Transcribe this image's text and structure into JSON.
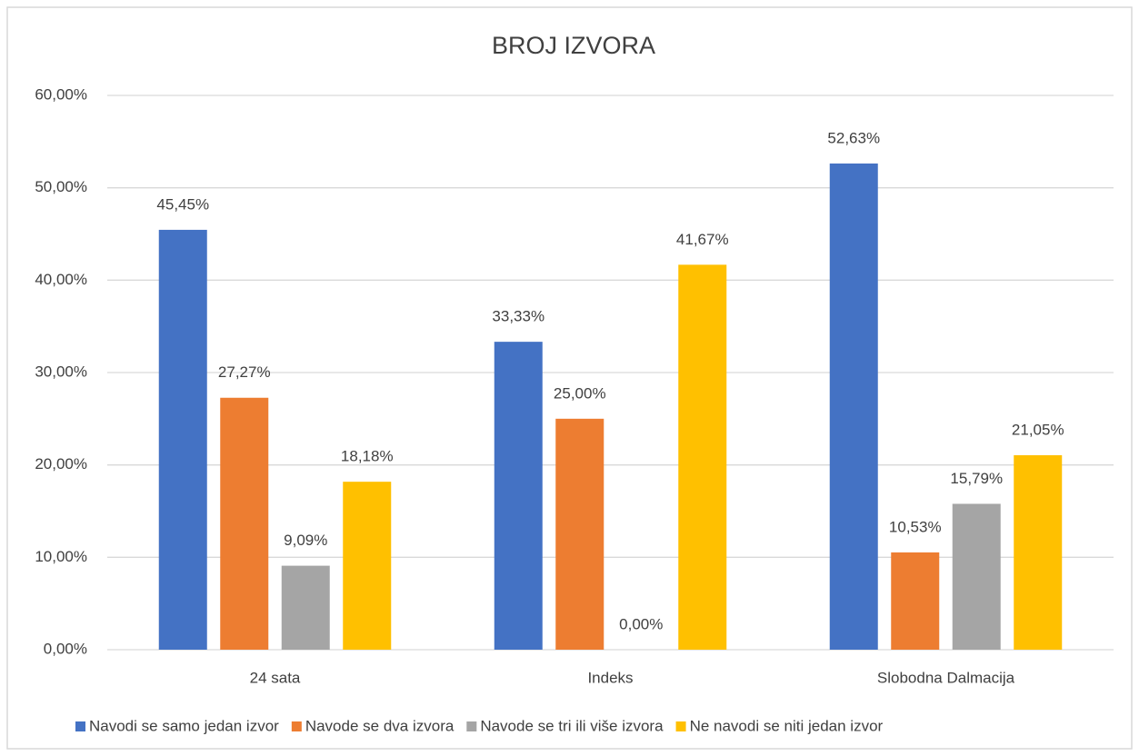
{
  "chart_data": {
    "type": "bar",
    "title": "BROJ IZVORA",
    "categories": [
      "24 sata",
      "Indeks",
      "Slobodna Dalmacija"
    ],
    "series": [
      {
        "name": "Navodi se samo jedan izvor",
        "color": "#4472c4",
        "values": [
          45.45,
          33.33,
          52.63
        ],
        "value_labels": [
          "45,45%",
          "33,33%",
          "52,63%"
        ]
      },
      {
        "name": "Navode se dva izvora",
        "color": "#ed7d31",
        "values": [
          27.27,
          25.0,
          10.53
        ],
        "value_labels": [
          "27,27%",
          "25,00%",
          "10,53%"
        ]
      },
      {
        "name": "Navode se tri ili više izvora",
        "color": "#a5a5a5",
        "values": [
          9.09,
          0,
          15.79
        ],
        "value_labels": [
          "9,09%",
          "0,00%",
          "15,79%"
        ]
      },
      {
        "name": "Ne navodi se niti jedan izvor",
        "color": "#ffc000",
        "values": [
          18.18,
          41.67,
          21.05
        ],
        "value_labels": [
          "18,18%",
          "41,67%",
          "21,05%"
        ]
      }
    ],
    "ylim": [
      0,
      60
    ],
    "yticks": [
      {
        "value": 0,
        "label": "0,00%"
      },
      {
        "value": 10,
        "label": "10,00%"
      },
      {
        "value": 20,
        "label": "20,00%"
      },
      {
        "value": 30,
        "label": "30,00%"
      },
      {
        "value": 40,
        "label": "40,00%"
      },
      {
        "value": 50,
        "label": "50,00%"
      },
      {
        "value": 60,
        "label": "60,00%"
      }
    ],
    "grid": true,
    "legend": "bottom"
  }
}
